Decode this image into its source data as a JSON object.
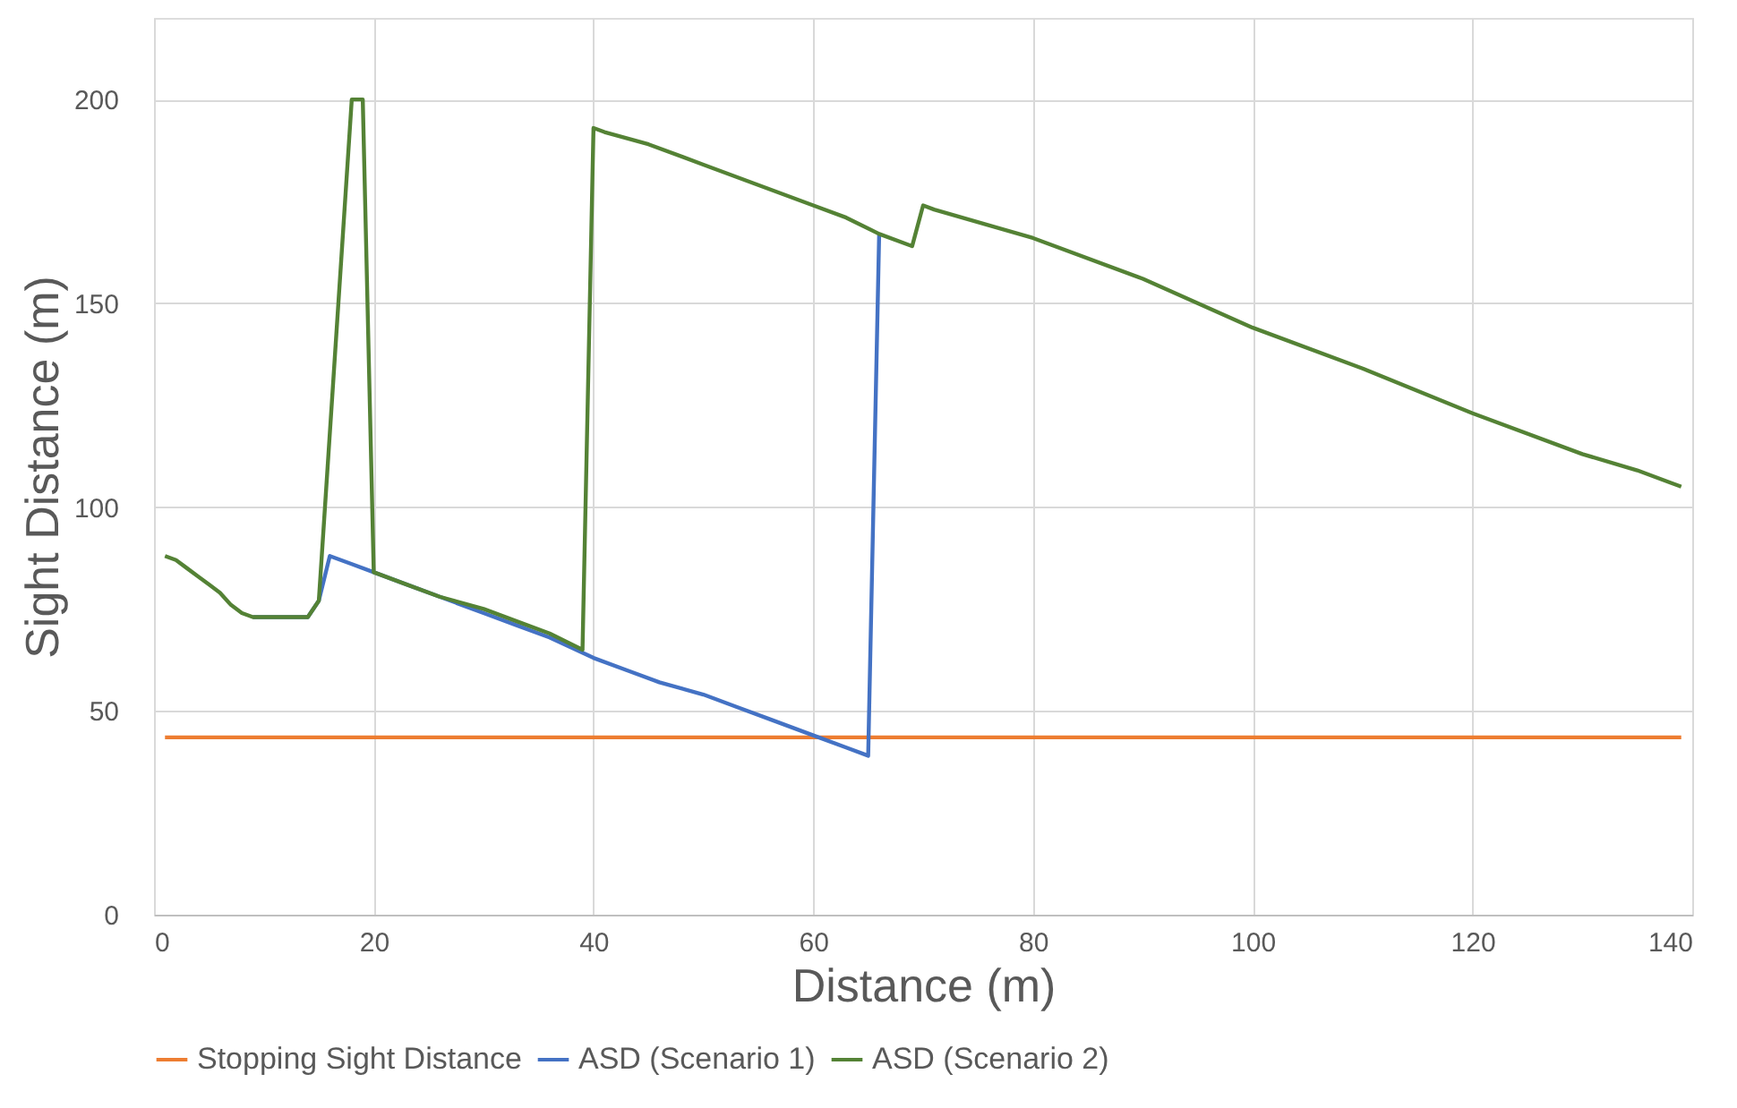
{
  "chart_data": {
    "type": "line",
    "xlabel": "Distance (m)",
    "ylabel": "Sight Distance  (m)",
    "xlim": [
      0,
      140
    ],
    "xticks": [
      0,
      20,
      40,
      60,
      80,
      100,
      120,
      140
    ],
    "ylim": [
      0,
      220
    ],
    "yticks": [
      0,
      50,
      100,
      150,
      200
    ],
    "grid": true,
    "legend": "bottom",
    "marker": "none",
    "line_style": "solid",
    "series": [
      {
        "name": "Stopping Sight Distance",
        "color": "#ed7d31",
        "x": [
          1,
          139
        ],
        "values": [
          43.5,
          43.5
        ]
      },
      {
        "name": "ASD (Scenario 1)",
        "color": "#4472c4",
        "x": [
          9,
          14,
          15,
          16,
          18,
          20,
          23,
          26,
          30,
          33,
          36,
          40,
          43,
          46,
          50,
          53,
          56,
          60,
          63,
          65,
          66
        ],
        "values": [
          73,
          73,
          77,
          88,
          86,
          84,
          81,
          78,
          74,
          71,
          68,
          63,
          60,
          57,
          54,
          51,
          48,
          44,
          41,
          39,
          167
        ]
      },
      {
        "name": "ASD (Scenario 2)",
        "color": "#548235",
        "x": [
          1,
          2,
          3,
          4,
          5,
          6,
          7,
          8,
          9,
          14,
          15,
          18,
          19,
          20,
          23,
          26,
          30,
          33,
          36,
          39,
          40,
          41,
          45,
          50,
          55,
          60,
          63,
          66,
          69,
          70,
          71,
          80,
          90,
          100,
          110,
          120,
          130,
          135,
          138,
          139
        ],
        "values": [
          88,
          87,
          85,
          83,
          81,
          79,
          76,
          74,
          73,
          73,
          77,
          200,
          200,
          84,
          81,
          78,
          75,
          72,
          69,
          65,
          193,
          192,
          189,
          184,
          179,
          174,
          171,
          167,
          164,
          174,
          173,
          166,
          156,
          144,
          134,
          123,
          113,
          109,
          106,
          105
        ]
      }
    ]
  }
}
